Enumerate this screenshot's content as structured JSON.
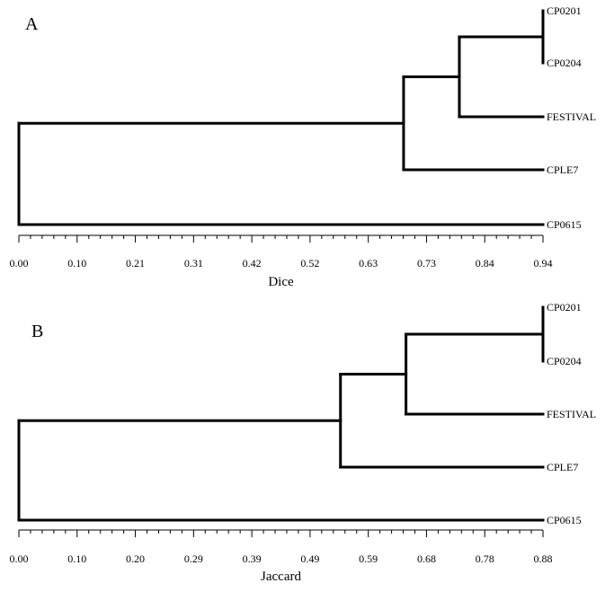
{
  "chart_data": [
    {
      "type": "dendrogram",
      "panel_label": "A",
      "xlabel": "Dice",
      "xlim": [
        0,
        0.94
      ],
      "ticks": [
        "0.00",
        "0.10",
        "0.21",
        "0.31",
        "0.42",
        "0.52",
        "0.63",
        "0.73",
        "0.84",
        "0.94"
      ],
      "leaves": [
        "CP0201",
        "CP0204",
        "FESTIVAL",
        "CPLE7",
        "CP0615"
      ],
      "merges": [
        {
          "children": [
            "CP0201",
            "CP0204"
          ],
          "value": 0.94
        },
        {
          "children": [
            0,
            "FESTIVAL"
          ],
          "value": 0.79
        },
        {
          "children": [
            1,
            "CPLE7"
          ],
          "value": 0.69
        },
        {
          "children": [
            2,
            "CP0615"
          ],
          "value": 0.0
        }
      ]
    },
    {
      "type": "dendrogram",
      "panel_label": "B",
      "xlabel": "Jaccard",
      "xlim": [
        0,
        0.88
      ],
      "ticks": [
        "0.00",
        "0.10",
        "0.20",
        "0.29",
        "0.39",
        "0.49",
        "0.59",
        "0.68",
        "0.78",
        "0.88"
      ],
      "leaves": [
        "CP0201",
        "CP0204",
        "FESTIVAL",
        "CPLE7",
        "CP0615"
      ],
      "merges": [
        {
          "children": [
            "CP0201",
            "CP0204"
          ],
          "value": 0.88
        },
        {
          "children": [
            0,
            "FESTIVAL"
          ],
          "value": 0.65
        },
        {
          "children": [
            1,
            "CPLE7"
          ],
          "value": 0.54
        },
        {
          "children": [
            2,
            "CP0615"
          ],
          "value": 0.0
        }
      ]
    }
  ]
}
